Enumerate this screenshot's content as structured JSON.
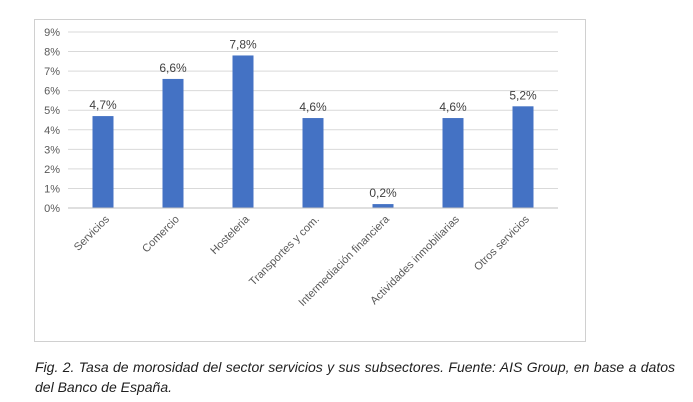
{
  "chart_data": {
    "type": "bar",
    "categories": [
      "Servicios",
      "Comercio",
      "Hosteleria",
      "Transportes y com.",
      "Intermediación financiera",
      "Actividades inmobiliarias",
      "Otros servicios"
    ],
    "values": [
      4.7,
      6.6,
      7.8,
      4.6,
      0.2,
      4.6,
      5.2
    ],
    "data_labels": [
      "4,7%",
      "6,6%",
      "7,8%",
      "4,6%",
      "0,2%",
      "4,6%",
      "5,2%"
    ],
    "y_ticks": [
      "0%",
      "1%",
      "2%",
      "3%",
      "4%",
      "5%",
      "6%",
      "7%",
      "8%",
      "9%"
    ],
    "ylim": [
      0,
      9
    ],
    "bar_color": "#4472c4",
    "grid": true,
    "legend": false
  },
  "caption": "Fig. 2. Tasa de morosidad del sector servicios y sus subsectores. Fuente: AIS Group, en base a datos del Banco de España."
}
